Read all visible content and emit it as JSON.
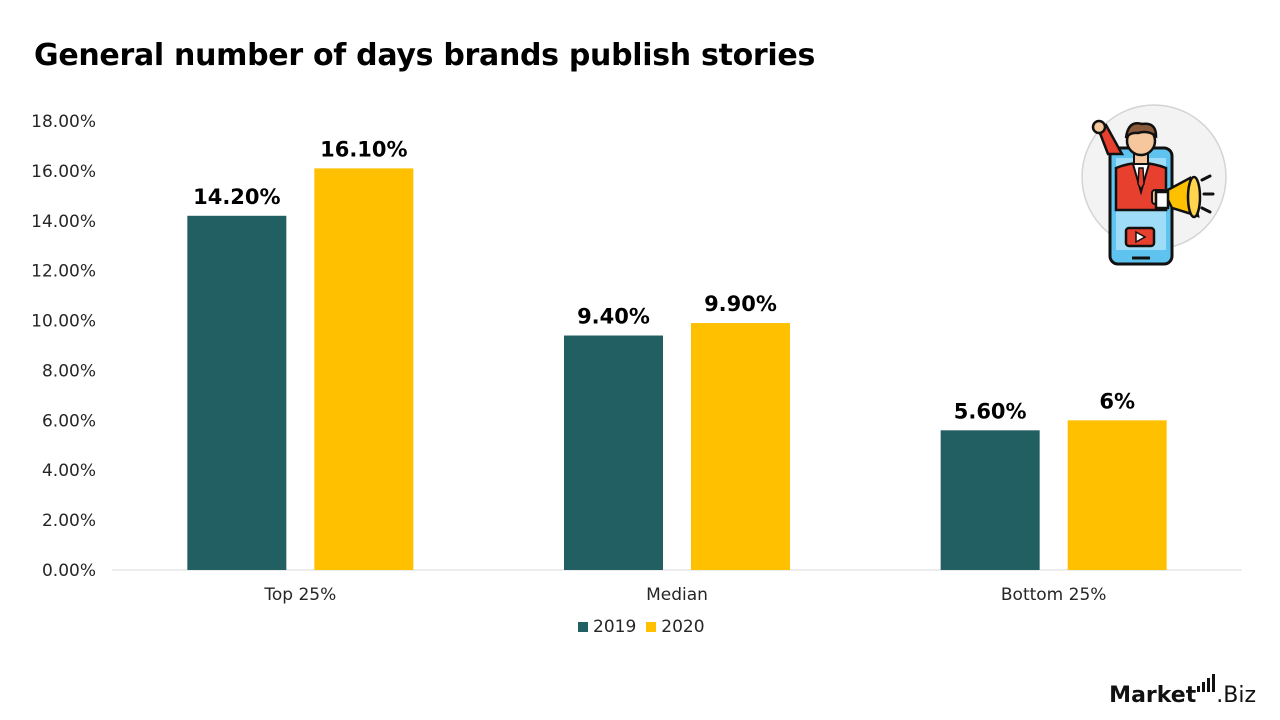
{
  "chart_data": {
    "type": "bar",
    "title": "General number of days brands publish stories",
    "categories": [
      "Top 25%",
      "Median",
      "Bottom 25%"
    ],
    "series": [
      {
        "name": "2019",
        "color": "#215f63",
        "values": [
          14.2,
          9.4,
          5.6
        ],
        "labels": [
          "14.20%",
          "9.40%",
          "5.60%"
        ]
      },
      {
        "name": "2020",
        "color": "#ffc000",
        "values": [
          16.1,
          9.9,
          6.0
        ],
        "labels": [
          "16.10%",
          "9.90%",
          "6%"
        ]
      }
    ],
    "ylim": [
      0,
      18
    ],
    "yticks": [
      "0.00%",
      "2.00%",
      "4.00%",
      "6.00%",
      "8.00%",
      "10.00%",
      "12.00%",
      "14.00%",
      "16.00%",
      "18.00%"
    ],
    "xlabel": "",
    "ylabel": "",
    "grid": false,
    "legend_position": "bottom"
  },
  "legend": {
    "item_2019": "2019",
    "item_2020": "2020"
  },
  "illustration": {
    "icon": "promoter-megaphone-phone-icon"
  },
  "logo": {
    "text_left": "Market",
    "text_right": ".Biz"
  }
}
